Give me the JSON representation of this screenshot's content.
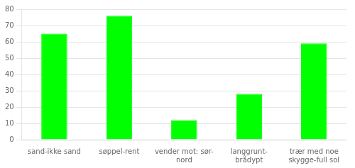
{
  "chart_data": {
    "type": "bar",
    "categories": [
      "sand-ikke sand",
      "søppel-rent",
      "vender mot: sør-\nnord",
      "langgrunt-\nbrådypt",
      "trær med noe\nskygge-full sol"
    ],
    "values": [
      65,
      76,
      12,
      28,
      59
    ],
    "color": "#00ff00",
    "ylim": [
      0,
      80
    ],
    "yticks": [
      0,
      10,
      20,
      30,
      40,
      50,
      60,
      70,
      80
    ],
    "grid": true
  }
}
